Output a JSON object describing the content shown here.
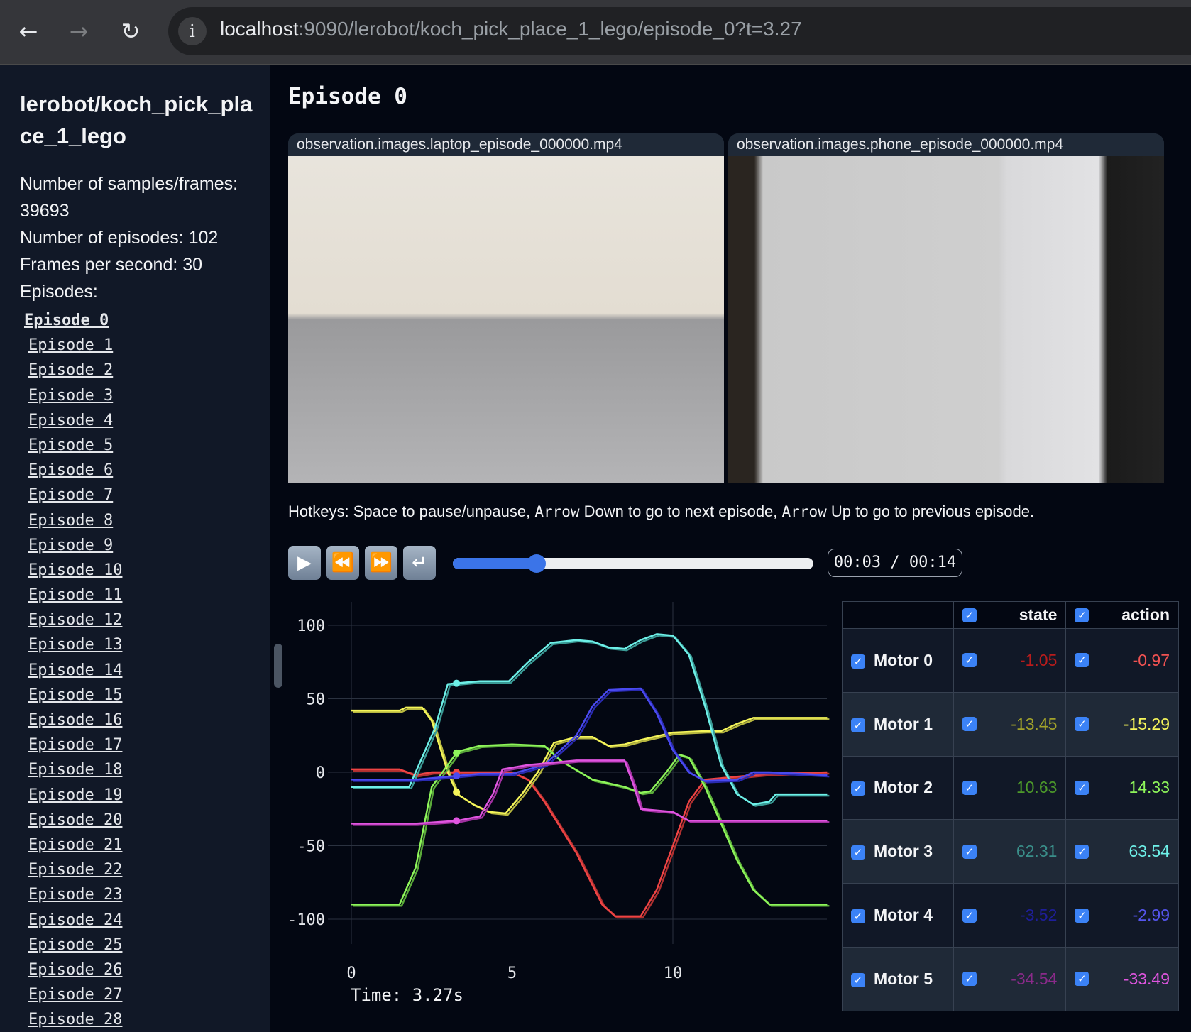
{
  "browser": {
    "back_icon": "arrow-left",
    "forward_icon": "arrow-right",
    "reload_icon": "reload",
    "info_icon": "info",
    "url_host": "localhost",
    "url_rest": ":9090/lerobot/koch_pick_place_1_lego/episode_0?t=3.27"
  },
  "sidebar": {
    "title": "lerobot/koch_pick_place_1_lego",
    "stats": [
      "Number of samples/frames: 39693",
      "Number of episodes: 102",
      "Frames per second: 30",
      "Episodes:"
    ],
    "episodes": [
      "Episode 0",
      "Episode 1",
      "Episode 2",
      "Episode 3",
      "Episode 4",
      "Episode 5",
      "Episode 6",
      "Episode 7",
      "Episode 8",
      "Episode 9",
      "Episode 10",
      "Episode 11",
      "Episode 12",
      "Episode 13",
      "Episode 14",
      "Episode 15",
      "Episode 16",
      "Episode 17",
      "Episode 18",
      "Episode 19",
      "Episode 20",
      "Episode 21",
      "Episode 22",
      "Episode 23",
      "Episode 24",
      "Episode 25",
      "Episode 26",
      "Episode 27",
      "Episode 28"
    ],
    "active_episode": 0
  },
  "main": {
    "title": "Episode 0",
    "videos": [
      "observation.images.laptop_episode_000000.mp4",
      "observation.images.phone_episode_000000.mp4"
    ],
    "hotkeys": {
      "p1": "Hotkeys: Space to pause/unpause, ",
      "k1": "Arrow",
      "p2": " Down to go to next episode, ",
      "k2": "Arrow",
      "p3": " Up to go to previous episode."
    },
    "player": {
      "current": "00:03",
      "duration": "00:14",
      "time_display": "00:03 / 00:14",
      "progress_fraction": 0.233,
      "icons": [
        "play",
        "rewind",
        "fast-forward",
        "loop"
      ]
    },
    "time_label": "Time: 3.27s"
  },
  "table": {
    "headers": [
      "state",
      "action"
    ],
    "rows": [
      {
        "name": "Motor 0",
        "state": "-1.05",
        "action": "-0.97",
        "state_color": "#b91c1c",
        "action_color": "#f05252"
      },
      {
        "name": "Motor 1",
        "state": "-13.45",
        "action": "-15.29",
        "state_color": "#a3a32a",
        "action_color": "#f5f55a"
      },
      {
        "name": "Motor 2",
        "state": "10.63",
        "action": "14.33",
        "state_color": "#4d9a2a",
        "action_color": "#8ef55a"
      },
      {
        "name": "Motor 3",
        "state": "62.31",
        "action": "63.54",
        "state_color": "#3a8f8a",
        "action_color": "#6ef0e8"
      },
      {
        "name": "Motor 4",
        "state": "-3.52",
        "action": "-2.99",
        "state_color": "#1e1e9a",
        "action_color": "#5555ee"
      },
      {
        "name": "Motor 5",
        "state": "-34.54",
        "action": "-33.49",
        "state_color": "#8a2a8a",
        "action_color": "#e055e0"
      }
    ]
  },
  "chart_data": {
    "type": "line",
    "xlim": [
      0,
      14.8
    ],
    "ylim": [
      -110,
      110
    ],
    "xticks": [
      "0",
      "5",
      "10"
    ],
    "yticks": [
      "100",
      "50",
      "0",
      "-50",
      "-100"
    ],
    "grid": true,
    "current_time": 3.27,
    "series": [
      {
        "name": "Motor 0",
        "color": "#ef4444",
        "state_color": "#b03030",
        "points": [
          [
            0,
            2
          ],
          [
            1.5,
            2
          ],
          [
            2,
            -2
          ],
          [
            2.5,
            0
          ],
          [
            5,
            0
          ],
          [
            5.5,
            -5
          ],
          [
            6,
            -20
          ],
          [
            7,
            -55
          ],
          [
            7.8,
            -90
          ],
          [
            8.2,
            -98
          ],
          [
            9,
            -98
          ],
          [
            9.5,
            -80
          ],
          [
            10,
            -50
          ],
          [
            10.5,
            -20
          ],
          [
            11,
            -5
          ],
          [
            12,
            -3
          ],
          [
            13,
            -1
          ],
          [
            14.8,
            0
          ]
        ]
      },
      {
        "name": "Motor 1",
        "color": "#f5f55a",
        "state_color": "#b8b840",
        "points": [
          [
            0,
            42
          ],
          [
            1.5,
            42
          ],
          [
            1.7,
            44
          ],
          [
            2.2,
            44
          ],
          [
            2.5,
            35
          ],
          [
            3,
            0
          ],
          [
            3.3,
            -15
          ],
          [
            3.8,
            -22
          ],
          [
            4.3,
            -27
          ],
          [
            4.8,
            -28
          ],
          [
            5.3,
            -15
          ],
          [
            5.8,
            0
          ],
          [
            6.3,
            20
          ],
          [
            7,
            24
          ],
          [
            7.5,
            24
          ],
          [
            8,
            18
          ],
          [
            8.5,
            19
          ],
          [
            9,
            22
          ],
          [
            10,
            27
          ],
          [
            11,
            28
          ],
          [
            11.5,
            28
          ],
          [
            12,
            33
          ],
          [
            12.5,
            37
          ],
          [
            14.8,
            37
          ]
        ]
      },
      {
        "name": "Motor 2",
        "color": "#8ef55a",
        "state_color": "#5aaa3a",
        "points": [
          [
            0,
            -90
          ],
          [
            1.5,
            -90
          ],
          [
            2,
            -65
          ],
          [
            2.5,
            -10
          ],
          [
            3,
            5
          ],
          [
            3.3,
            14
          ],
          [
            4,
            18
          ],
          [
            5,
            19
          ],
          [
            6,
            18
          ],
          [
            6.5,
            8
          ],
          [
            7.5,
            -5
          ],
          [
            8.5,
            -10
          ],
          [
            9,
            -14
          ],
          [
            9.3,
            -13
          ],
          [
            9.8,
            0
          ],
          [
            10.2,
            12
          ],
          [
            10.5,
            10
          ],
          [
            11,
            -10
          ],
          [
            12,
            -60
          ],
          [
            12.5,
            -80
          ],
          [
            13,
            -90
          ],
          [
            14.8,
            -90
          ]
        ]
      },
      {
        "name": "Motor 3",
        "color": "#6ef0e8",
        "state_color": "#3a9a95",
        "points": [
          [
            0,
            -10
          ],
          [
            1.8,
            -10
          ],
          [
            2.6,
            30
          ],
          [
            3,
            60
          ],
          [
            4,
            62
          ],
          [
            4.9,
            62
          ],
          [
            5.5,
            75
          ],
          [
            6.2,
            88
          ],
          [
            7,
            90
          ],
          [
            7.5,
            89
          ],
          [
            8,
            85
          ],
          [
            8.5,
            84
          ],
          [
            9,
            90
          ],
          [
            9.5,
            94
          ],
          [
            10,
            93
          ],
          [
            10.5,
            80
          ],
          [
            11,
            45
          ],
          [
            11.5,
            5
          ],
          [
            12,
            -15
          ],
          [
            12.5,
            -22
          ],
          [
            13,
            -20
          ],
          [
            13.2,
            -15
          ],
          [
            14.8,
            -15
          ]
        ]
      },
      {
        "name": "Motor 4",
        "color": "#4a4af0",
        "state_color": "#2a2ab0",
        "points": [
          [
            0,
            -5
          ],
          [
            2,
            -5
          ],
          [
            3,
            -3
          ],
          [
            4,
            -1
          ],
          [
            5,
            -1
          ],
          [
            6,
            5
          ],
          [
            7,
            25
          ],
          [
            7.5,
            45
          ],
          [
            8,
            56
          ],
          [
            9,
            57
          ],
          [
            9.5,
            40
          ],
          [
            10,
            15
          ],
          [
            10.5,
            0
          ],
          [
            11,
            -6
          ],
          [
            12,
            -5
          ],
          [
            12.5,
            0
          ],
          [
            13,
            0
          ],
          [
            14,
            -1
          ],
          [
            14.8,
            -2
          ]
        ]
      },
      {
        "name": "Motor 5",
        "color": "#e055e0",
        "state_color": "#a030a0",
        "points": [
          [
            0,
            -35
          ],
          [
            2,
            -35
          ],
          [
            3.3,
            -33
          ],
          [
            4,
            -30
          ],
          [
            4.4,
            -15
          ],
          [
            4.7,
            2
          ],
          [
            5.5,
            5
          ],
          [
            7,
            8
          ],
          [
            8.5,
            8
          ],
          [
            8.8,
            -10
          ],
          [
            9,
            -25
          ],
          [
            10,
            -27
          ],
          [
            10.5,
            -33
          ],
          [
            14.8,
            -33
          ]
        ]
      }
    ]
  }
}
